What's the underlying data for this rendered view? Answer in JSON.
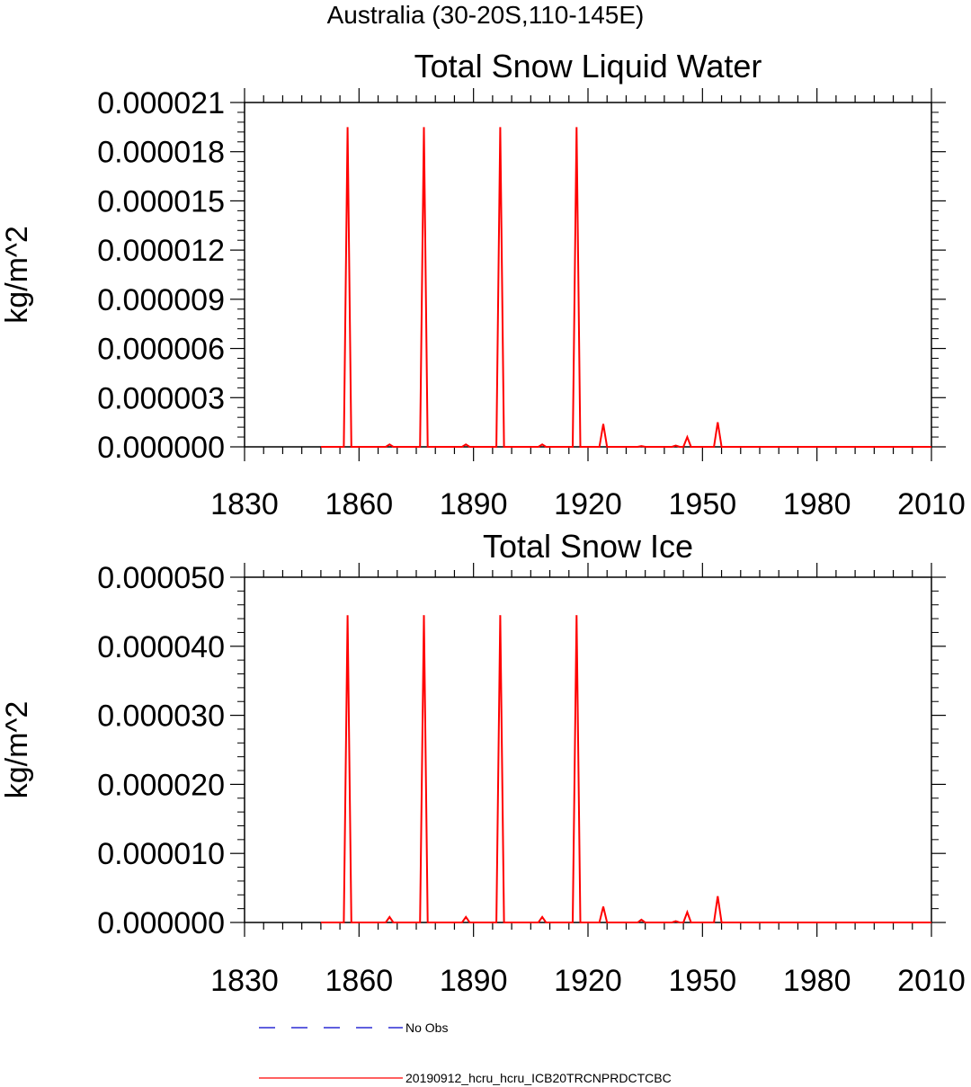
{
  "figure": {
    "main_title": "Australia (30-20S,110-145E)"
  },
  "legend": {
    "entries": [
      {
        "label": "No Obs",
        "color": "#0000cc",
        "dash": "dashed"
      },
      {
        "label": "20190912_hcru_hcru_ICB20TRCNPRDCTCBC",
        "color": "#ff0000",
        "dash": "solid"
      }
    ]
  },
  "chart_data": [
    {
      "type": "line",
      "title": "Total Snow Liquid Water",
      "xlabel": "",
      "ylabel": "kg/m^2",
      "xlim": [
        1830,
        2010
      ],
      "ylim": [
        0,
        2.1e-05
      ],
      "xticks": [
        1830,
        1860,
        1890,
        1920,
        1950,
        1980,
        2010
      ],
      "yticks": [
        "0.000000",
        "0.000003",
        "0.000006",
        "0.000009",
        "0.000012",
        "0.000015",
        "0.000018",
        "0.000021"
      ],
      "ytick_values": [
        0,
        3e-06,
        6e-06,
        9e-06,
        1.2e-05,
        1.5e-05,
        1.8e-05,
        2.1e-05
      ],
      "series": [
        {
          "name": "20190912_hcru_hcru_ICB20TRCNPRDCTCBC",
          "color": "#ff0000",
          "x": [
            1850,
            1856,
            1857,
            1858,
            1867,
            1868,
            1869,
            1876,
            1877,
            1878,
            1887,
            1888,
            1889,
            1896,
            1897,
            1898,
            1907,
            1908,
            1909,
            1916,
            1917,
            1918,
            1923,
            1924,
            1925,
            1933,
            1934,
            1935,
            1942,
            1943,
            1944,
            1945,
            1946,
            1947,
            1953,
            1954,
            1955,
            2010
          ],
          "y": [
            0,
            0,
            1.95e-05,
            0,
            0,
            1.5e-07,
            0,
            0,
            1.95e-05,
            0,
            0,
            1.5e-07,
            0,
            0,
            1.95e-05,
            0,
            0,
            1.5e-07,
            0,
            0,
            1.95e-05,
            0,
            0,
            1.4e-06,
            0,
            0,
            5e-08,
            0,
            0,
            8e-08,
            0,
            0,
            6e-07,
            0,
            0,
            1.5e-06,
            0,
            0
          ]
        }
      ]
    },
    {
      "type": "line",
      "title": "Total Snow Ice",
      "xlabel": "",
      "ylabel": "kg/m^2",
      "xlim": [
        1830,
        2010
      ],
      "ylim": [
        0,
        5e-05
      ],
      "xticks": [
        1830,
        1860,
        1890,
        1920,
        1950,
        1980,
        2010
      ],
      "yticks": [
        "0.000000",
        "0.000010",
        "0.000020",
        "0.000030",
        "0.000040",
        "0.000050"
      ],
      "ytick_values": [
        0,
        1e-05,
        2e-05,
        3e-05,
        4e-05,
        5e-05
      ],
      "series": [
        {
          "name": "20190912_hcru_hcru_ICB20TRCNPRDCTCBC",
          "color": "#ff0000",
          "x": [
            1850,
            1856,
            1857,
            1858,
            1867,
            1868,
            1869,
            1876,
            1877,
            1878,
            1887,
            1888,
            1889,
            1896,
            1897,
            1898,
            1907,
            1908,
            1909,
            1916,
            1917,
            1918,
            1923,
            1924,
            1925,
            1933,
            1934,
            1935,
            1942,
            1943,
            1944,
            1945,
            1946,
            1947,
            1953,
            1954,
            1955,
            2010
          ],
          "y": [
            0,
            0,
            4.45e-05,
            0,
            0,
            8e-07,
            0,
            0,
            4.45e-05,
            0,
            0,
            8e-07,
            0,
            0,
            4.45e-05,
            0,
            0,
            8e-07,
            0,
            0,
            4.45e-05,
            0,
            0,
            2.3e-06,
            0,
            0,
            4e-07,
            0,
            0,
            2e-07,
            0,
            0,
            1.5e-06,
            0,
            0,
            3.8e-06,
            0,
            0
          ]
        }
      ]
    }
  ]
}
